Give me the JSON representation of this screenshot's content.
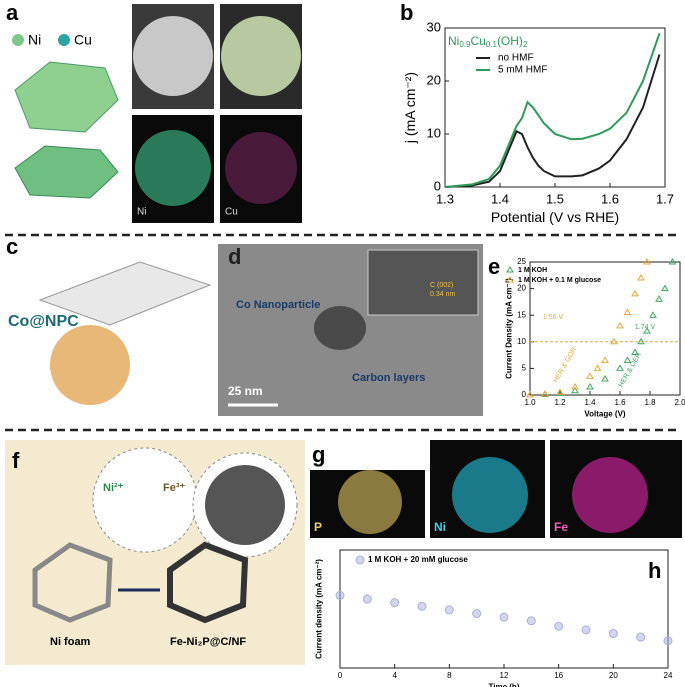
{
  "panel_labels": [
    "a",
    "b",
    "c",
    "d",
    "e",
    "f",
    "g",
    "h"
  ],
  "panel_a": {
    "legend": [
      "Ni",
      "Cu"
    ],
    "map_labels": [
      "Ni",
      "Cu"
    ]
  },
  "panel_c": {
    "label": "Co@NPC"
  },
  "panel_d": {
    "labels": [
      "Co Nanoparticle",
      "Carbon layers"
    ],
    "scale_bar": "25 nm",
    "lattice": [
      "C (002)",
      "0.34 nm"
    ]
  },
  "panel_f": {
    "ions": [
      "Ni²⁺",
      "Fe³⁺"
    ],
    "captions": [
      "Ni foam",
      "Fe-Ni₂P@C/NF"
    ]
  },
  "panel_g": {
    "map_labels": [
      "P",
      "Ni",
      "Fe"
    ]
  },
  "chart_data": [
    {
      "type": "line",
      "annotation": [
        "Ni",
        "0.9",
        "Cu",
        "0.1",
        "(OH)",
        "2"
      ],
      "x_label": "Potential (V vs RHE)",
      "y_label": "j (mA cm⁻²)",
      "xlim": [
        1.3,
        1.7
      ],
      "xticks": [
        1.3,
        1.4,
        1.5,
        1.6,
        1.7
      ],
      "ylim": [
        0,
        30
      ],
      "yticks": [
        0,
        10,
        20,
        30
      ],
      "x": [
        1.3,
        1.35,
        1.38,
        1.4,
        1.42,
        1.43,
        1.44,
        1.45,
        1.46,
        1.47,
        1.48,
        1.5,
        1.53,
        1.55,
        1.58,
        1.6,
        1.63,
        1.66,
        1.69
      ],
      "series": [
        {
          "name": "no HMF",
          "color": "#222222",
          "values": [
            0,
            0.3,
            1,
            3,
            8,
            10.5,
            10,
            7.5,
            5.5,
            4,
            3,
            2,
            2,
            2.2,
            3.5,
            5,
            9,
            15,
            25
          ]
        },
        {
          "name": "5 mM HMF",
          "color": "#2e9a5a",
          "values": [
            0,
            0.5,
            1.5,
            4,
            9,
            11.5,
            13,
            16,
            15,
            13.5,
            12,
            10,
            9,
            9.1,
            10,
            11,
            14,
            20,
            29
          ]
        }
      ]
    },
    {
      "type": "line",
      "x_label": "Voltage (V)",
      "y_label": "Current Density (mA cm⁻²)",
      "xlim": [
        1.0,
        2.0
      ],
      "xticks": [
        {
          "value": 1.0,
          "label": "1.0"
        },
        1.2,
        1.4,
        1.6,
        1.8,
        {
          "value": 2.0,
          "label": "2.0"
        }
      ],
      "ylim": [
        0,
        25
      ],
      "yticks": [
        0,
        5,
        10,
        15,
        20,
        25
      ],
      "hline": 10,
      "annotations": [
        "1.56 V",
        "1.74 V",
        "HER & GOR",
        "HER & OER"
      ],
      "series": [
        {
          "name": "1 M KOH",
          "color": "#3aa85c",
          "x": [
            1.0,
            1.1,
            1.2,
            1.3,
            1.4,
            1.5,
            1.6,
            1.65,
            1.7,
            1.74,
            1.78,
            1.82,
            1.86,
            1.9,
            1.95
          ],
          "values": [
            0,
            0.1,
            0.3,
            0.8,
            1.5,
            3,
            5,
            6.5,
            8,
            10,
            12,
            15,
            18,
            20,
            25
          ]
        },
        {
          "name": "1 M KOH + 0.1 M glucose",
          "color": "#e8a83a",
          "x": [
            1.0,
            1.1,
            1.2,
            1.3,
            1.4,
            1.45,
            1.5,
            1.56,
            1.6,
            1.65,
            1.7,
            1.74,
            1.78
          ],
          "values": [
            0,
            0.2,
            0.5,
            1.5,
            3.5,
            5,
            6.5,
            10,
            13,
            15.5,
            19,
            22,
            25
          ]
        }
      ]
    },
    {
      "type": "line",
      "x_label": "Time (h)",
      "y_label": "Current density (mA cm⁻²)",
      "xlim": [
        0,
        24
      ],
      "xticks": [
        0,
        4,
        8,
        12,
        16,
        20,
        24
      ],
      "ylim": [
        0,
        65
      ],
      "series": [
        {
          "name": "1 M KOH + 20 mM glucose",
          "color": "#a8b0d8",
          "x": [
            0,
            2,
            4,
            6,
            8,
            10,
            12,
            14,
            16,
            18,
            20,
            22,
            24
          ],
          "values": [
            40,
            38,
            36,
            34,
            32,
            30,
            28,
            26,
            23,
            21,
            19,
            17,
            15
          ]
        }
      ]
    }
  ]
}
